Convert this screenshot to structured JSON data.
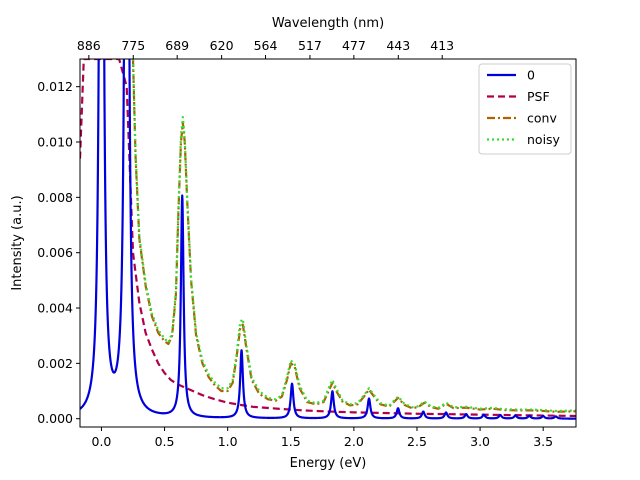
{
  "chart_data": {
    "type": "line",
    "xlabel": "Energy (eV)",
    "ylabel": "Intensity (a.u.)",
    "top_xlabel": "Wavelength (nm)",
    "xlim": [
      -0.17,
      3.76
    ],
    "ylim": [
      -0.0003,
      0.013
    ],
    "x_ticks": [
      0.0,
      0.5,
      1.0,
      1.5,
      2.0,
      2.5,
      3.0,
      3.5
    ],
    "x_tick_labels": [
      "0.0",
      "0.5",
      "1.0",
      "1.5",
      "2.0",
      "2.5",
      "3.0",
      "3.5"
    ],
    "y_ticks": [
      0.0,
      0.002,
      0.004,
      0.006,
      0.008,
      0.01,
      0.012
    ],
    "y_tick_labels": [
      "0.000",
      "0.002",
      "0.004",
      "0.006",
      "0.008",
      "0.010",
      "0.012"
    ],
    "top_ticks": [
      {
        "energy": -0.1,
        "label": "886"
      },
      {
        "energy": 0.252,
        "label": "775"
      },
      {
        "energy": 0.6,
        "label": "689"
      },
      {
        "energy": 0.952,
        "label": "620"
      },
      {
        "energy": 1.3,
        "label": "564"
      },
      {
        "energy": 1.652,
        "label": "517"
      },
      {
        "energy": 2.0,
        "label": "477"
      },
      {
        "energy": 2.352,
        "label": "443"
      },
      {
        "energy": 2.7,
        "label": "413"
      }
    ],
    "legend_position": "top-right",
    "grid": false,
    "series": [
      {
        "name": "0",
        "color": "#0000dd",
        "style": "solid",
        "peaks": [
          {
            "x": 0.0,
            "height": 0.05
          },
          {
            "x": 0.2,
            "height": 0.05
          },
          {
            "x": 0.64,
            "height": 0.008
          },
          {
            "x": 1.11,
            "height": 0.00245
          },
          {
            "x": 1.51,
            "height": 0.00125
          },
          {
            "x": 1.83,
            "height": 0.00098
          },
          {
            "x": 2.12,
            "height": 0.00072
          },
          {
            "x": 2.35,
            "height": 0.00037
          },
          {
            "x": 2.55,
            "height": 0.00025
          },
          {
            "x": 2.73,
            "height": 0.00022
          },
          {
            "x": 2.89,
            "height": 0.00016
          },
          {
            "x": 3.03,
            "height": 0.00014
          },
          {
            "x": 3.16,
            "height": 0.00013
          },
          {
            "x": 3.28,
            "height": 0.00011
          },
          {
            "x": 3.39,
            "height": 0.0001
          },
          {
            "x": 3.5,
            "height": 9e-05
          },
          {
            "x": 3.6,
            "height": 8e-05
          }
        ]
      },
      {
        "name": "PSF",
        "color": "#b0004a",
        "style": "dashed",
        "points": [
          [
            -0.17,
            0.0094
          ],
          [
            -0.14,
            0.013
          ],
          [
            0.14,
            0.013
          ],
          [
            0.2,
            0.012
          ],
          [
            0.25,
            0.006
          ],
          [
            0.3,
            0.0042
          ],
          [
            0.35,
            0.0031
          ],
          [
            0.4,
            0.0025
          ],
          [
            0.45,
            0.002
          ],
          [
            0.5,
            0.00165
          ],
          [
            0.55,
            0.0014
          ],
          [
            0.6,
            0.00125
          ],
          [
            0.7,
            0.00105
          ],
          [
            0.8,
            0.00085
          ],
          [
            0.9,
            0.0007
          ],
          [
            1.0,
            0.00058
          ],
          [
            1.1,
            0.0005
          ],
          [
            1.2,
            0.00043
          ],
          [
            1.4,
            0.00036
          ],
          [
            1.6,
            0.0003
          ],
          [
            1.8,
            0.00026
          ],
          [
            2.0,
            0.00023
          ],
          [
            2.2,
            0.00021
          ],
          [
            2.5,
            0.00018
          ],
          [
            2.8,
            0.00016
          ],
          [
            3.1,
            0.00014
          ],
          [
            3.4,
            0.00012
          ],
          [
            3.76,
            0.0001
          ]
        ]
      },
      {
        "name": "conv",
        "color": "#b06000",
        "style": "dashdot",
        "points": [
          [
            0.25,
            0.013
          ],
          [
            0.27,
            0.0095
          ],
          [
            0.3,
            0.0065
          ],
          [
            0.35,
            0.0048
          ],
          [
            0.4,
            0.0037
          ],
          [
            0.45,
            0.0031
          ],
          [
            0.5,
            0.0028
          ],
          [
            0.53,
            0.0027
          ],
          [
            0.56,
            0.003
          ],
          [
            0.59,
            0.0045
          ],
          [
            0.61,
            0.0075
          ],
          [
            0.63,
            0.01
          ],
          [
            0.645,
            0.0107
          ],
          [
            0.66,
            0.01
          ],
          [
            0.68,
            0.0078
          ],
          [
            0.71,
            0.005
          ],
          [
            0.75,
            0.003
          ],
          [
            0.8,
            0.002
          ],
          [
            0.85,
            0.0015
          ],
          [
            0.9,
            0.0012
          ],
          [
            0.95,
            0.001
          ],
          [
            1.0,
            0.001
          ],
          [
            1.04,
            0.0013
          ],
          [
            1.07,
            0.0022
          ],
          [
            1.1,
            0.0033
          ],
          [
            1.12,
            0.0034
          ],
          [
            1.15,
            0.0025
          ],
          [
            1.19,
            0.0014
          ],
          [
            1.25,
            0.0009
          ],
          [
            1.32,
            0.0007
          ],
          [
            1.38,
            0.00065
          ],
          [
            1.43,
            0.0008
          ],
          [
            1.47,
            0.0014
          ],
          [
            1.5,
            0.002
          ],
          [
            1.53,
            0.0019
          ],
          [
            1.57,
            0.0011
          ],
          [
            1.63,
            0.0006
          ],
          [
            1.7,
            0.00052
          ],
          [
            1.76,
            0.0006
          ],
          [
            1.8,
            0.001
          ],
          [
            1.83,
            0.0013
          ],
          [
            1.86,
            0.001
          ],
          [
            1.91,
            0.00062
          ],
          [
            1.97,
            0.00048
          ],
          [
            2.03,
            0.00052
          ],
          [
            2.08,
            0.0008
          ],
          [
            2.12,
            0.00105
          ],
          [
            2.16,
            0.0008
          ],
          [
            2.21,
            0.00052
          ],
          [
            2.28,
            0.00044
          ],
          [
            2.35,
            0.00075
          ],
          [
            2.4,
            0.0005
          ],
          [
            2.46,
            0.00038
          ],
          [
            2.51,
            0.00042
          ],
          [
            2.56,
            0.00058
          ],
          [
            2.61,
            0.00042
          ],
          [
            2.67,
            0.00036
          ],
          [
            2.73,
            0.00054
          ],
          [
            2.79,
            0.00038
          ],
          [
            2.89,
            0.0004
          ],
          [
            3.0,
            0.00033
          ],
          [
            3.1,
            0.00036
          ],
          [
            3.2,
            0.00031
          ],
          [
            3.3,
            0.0003
          ],
          [
            3.4,
            0.0003
          ],
          [
            3.5,
            0.00028
          ],
          [
            3.6,
            0.00025
          ],
          [
            3.7,
            0.00026
          ],
          [
            3.76,
            0.00027
          ]
        ]
      },
      {
        "name": "noisy",
        "color": "#33dd33",
        "style": "dotted",
        "points": [
          [
            0.25,
            0.013
          ],
          [
            0.27,
            0.0096
          ],
          [
            0.3,
            0.0066
          ],
          [
            0.35,
            0.0049
          ],
          [
            0.4,
            0.0038
          ],
          [
            0.45,
            0.0032
          ],
          [
            0.5,
            0.0029
          ],
          [
            0.53,
            0.00275
          ],
          [
            0.56,
            0.0031
          ],
          [
            0.59,
            0.0046
          ],
          [
            0.61,
            0.0076
          ],
          [
            0.63,
            0.0102
          ],
          [
            0.645,
            0.0109
          ],
          [
            0.66,
            0.0101
          ],
          [
            0.68,
            0.0079
          ],
          [
            0.71,
            0.0051
          ],
          [
            0.75,
            0.0031
          ],
          [
            0.8,
            0.0021
          ],
          [
            0.85,
            0.0016
          ],
          [
            0.9,
            0.0013
          ],
          [
            0.95,
            0.0011
          ],
          [
            1.0,
            0.0011
          ],
          [
            1.04,
            0.0014
          ],
          [
            1.07,
            0.0023
          ],
          [
            1.1,
            0.0035
          ],
          [
            1.12,
            0.0036
          ],
          [
            1.15,
            0.0026
          ],
          [
            1.19,
            0.0015
          ],
          [
            1.25,
            0.001
          ],
          [
            1.32,
            0.00075
          ],
          [
            1.38,
            0.0007
          ],
          [
            1.43,
            0.00085
          ],
          [
            1.47,
            0.0015
          ],
          [
            1.5,
            0.0021
          ],
          [
            1.53,
            0.002
          ],
          [
            1.57,
            0.0012
          ],
          [
            1.63,
            0.00065
          ],
          [
            1.7,
            0.00056
          ],
          [
            1.76,
            0.00065
          ],
          [
            1.8,
            0.0011
          ],
          [
            1.83,
            0.0014
          ],
          [
            1.86,
            0.0011
          ],
          [
            1.91,
            0.00066
          ],
          [
            1.97,
            0.00052
          ],
          [
            2.03,
            0.00056
          ],
          [
            2.08,
            0.00085
          ],
          [
            2.12,
            0.0011
          ],
          [
            2.16,
            0.00085
          ],
          [
            2.21,
            0.00056
          ],
          [
            2.28,
            0.00047
          ],
          [
            2.35,
            0.0008
          ],
          [
            2.4,
            0.00054
          ],
          [
            2.46,
            0.00041
          ],
          [
            2.51,
            0.00045
          ],
          [
            2.56,
            0.00062
          ],
          [
            2.61,
            0.00045
          ],
          [
            2.67,
            0.00039
          ],
          [
            2.73,
            0.00058
          ],
          [
            2.79,
            0.00041
          ],
          [
            2.89,
            0.00043
          ],
          [
            3.0,
            0.00036
          ],
          [
            3.1,
            0.00039
          ],
          [
            3.2,
            0.00034
          ],
          [
            3.3,
            0.00033
          ],
          [
            3.4,
            0.00033
          ],
          [
            3.5,
            0.00031
          ],
          [
            3.6,
            0.00028
          ],
          [
            3.7,
            0.00029
          ],
          [
            3.76,
            0.0003
          ]
        ]
      }
    ]
  }
}
